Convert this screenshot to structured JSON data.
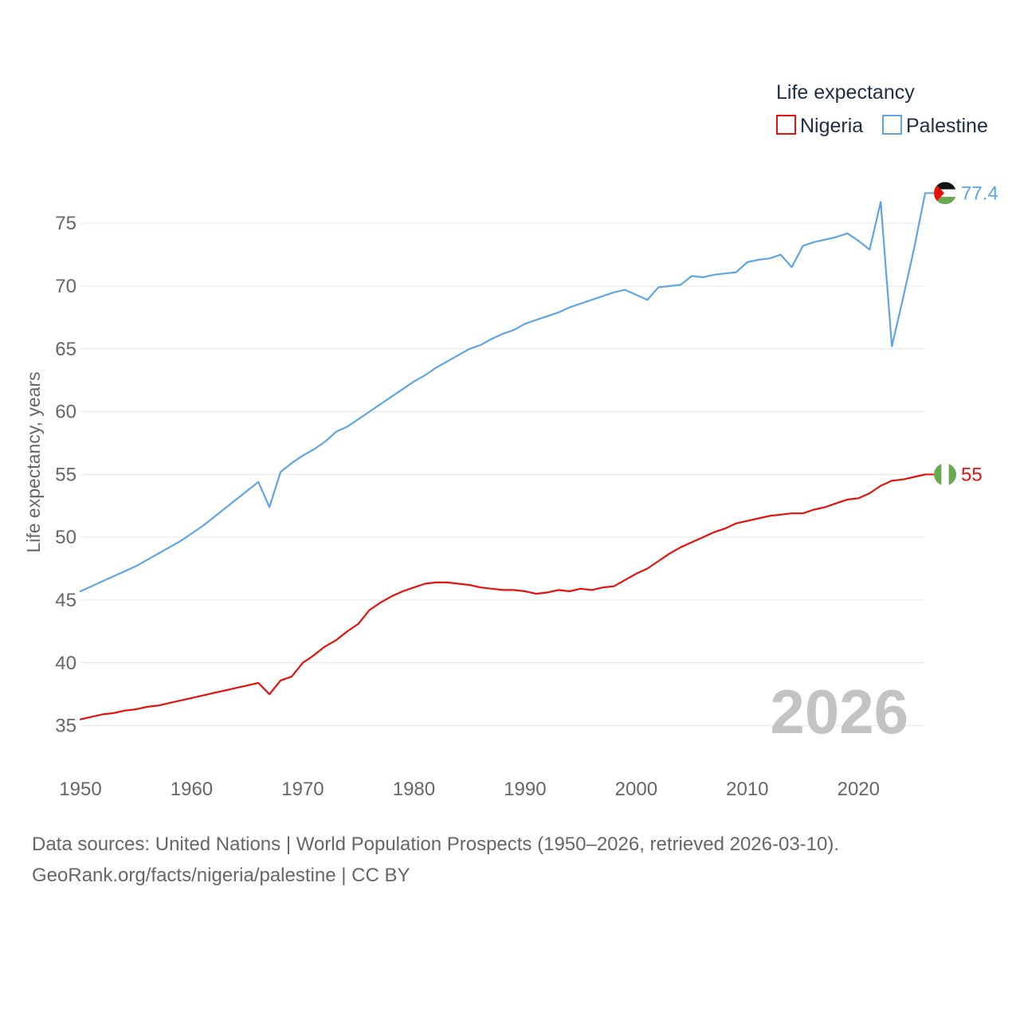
{
  "chart_data": {
    "type": "line",
    "legend_title": "Life expectancy",
    "legend_position": "top-right",
    "ylabel": "Life expectancy, years",
    "xlabel": "",
    "xlim": [
      1950,
      2026
    ],
    "ylim": [
      32.5,
      78.5
    ],
    "x_ticks": [
      1950,
      1960,
      1970,
      1980,
      1990,
      2000,
      2010,
      2020
    ],
    "y_ticks": [
      35,
      40,
      45,
      50,
      55,
      60,
      65,
      70,
      75
    ],
    "grid": true,
    "current_year_label": "2026",
    "x": [
      1950,
      1951,
      1952,
      1953,
      1954,
      1955,
      1956,
      1957,
      1958,
      1959,
      1960,
      1961,
      1962,
      1963,
      1964,
      1965,
      1966,
      1967,
      1968,
      1969,
      1970,
      1971,
      1972,
      1973,
      1974,
      1975,
      1976,
      1977,
      1978,
      1979,
      1980,
      1981,
      1982,
      1983,
      1984,
      1985,
      1986,
      1987,
      1988,
      1989,
      1990,
      1991,
      1992,
      1993,
      1994,
      1995,
      1996,
      1997,
      1998,
      1999,
      2000,
      2001,
      2002,
      2003,
      2004,
      2005,
      2006,
      2007,
      2008,
      2009,
      2010,
      2011,
      2012,
      2013,
      2014,
      2015,
      2016,
      2017,
      2018,
      2019,
      2020,
      2021,
      2022,
      2023,
      2024,
      2025,
      2026
    ],
    "series": [
      {
        "name": "Nigeria",
        "color": "#e3120b",
        "end_label": "55",
        "flag": "nigeria-flag-icon",
        "values": [
          35.5,
          35.7,
          35.9,
          36.0,
          36.2,
          36.3,
          36.5,
          36.6,
          36.8,
          37.0,
          37.2,
          37.4,
          37.6,
          37.8,
          38.0,
          38.2,
          38.4,
          37.5,
          38.6,
          38.9,
          40.0,
          40.6,
          41.3,
          41.8,
          42.5,
          43.1,
          44.2,
          44.8,
          45.3,
          45.7,
          46.0,
          46.3,
          46.4,
          46.4,
          46.3,
          46.2,
          46.0,
          45.9,
          45.8,
          45.8,
          45.7,
          45.5,
          45.6,
          45.8,
          45.7,
          45.9,
          45.8,
          46.0,
          46.1,
          46.6,
          47.1,
          47.5,
          48.1,
          48.7,
          49.2,
          49.6,
          50.0,
          50.4,
          50.7,
          51.1,
          51.3,
          51.5,
          51.7,
          51.8,
          51.9,
          51.9,
          52.2,
          52.4,
          52.7,
          53.0,
          53.1,
          53.5,
          54.1,
          54.5,
          54.6,
          54.8,
          55.0
        ]
      },
      {
        "name": "Palestine",
        "color": "#5fa5e3",
        "end_label": "77.4",
        "flag": "palestine-flag-icon",
        "values": [
          45.7,
          46.1,
          46.5,
          46.9,
          47.3,
          47.7,
          48.2,
          48.7,
          49.2,
          49.7,
          50.3,
          50.9,
          51.6,
          52.3,
          53.0,
          53.7,
          54.4,
          52.4,
          55.2,
          55.9,
          56.5,
          57.0,
          57.6,
          58.4,
          58.8,
          59.4,
          60.0,
          60.6,
          61.2,
          61.8,
          62.4,
          62.9,
          63.5,
          64.0,
          64.5,
          65.0,
          65.3,
          65.8,
          66.2,
          66.5,
          67.0,
          67.3,
          67.6,
          67.9,
          68.3,
          68.6,
          68.9,
          69.2,
          69.5,
          69.7,
          69.3,
          68.9,
          69.9,
          70.0,
          70.1,
          70.8,
          70.7,
          70.9,
          71.0,
          71.1,
          71.9,
          72.1,
          72.2,
          72.5,
          71.5,
          73.2,
          73.5,
          73.7,
          73.9,
          74.2,
          73.6,
          72.9,
          76.7,
          65.2,
          69.0,
          73.0,
          77.4
        ]
      }
    ]
  },
  "footer": {
    "line1": "Data sources: United Nations | World Population Prospects (1950–2026, retrieved 2026-03-10).",
    "line2": "GeoRank.org/facts/nigeria/palestine | CC BY"
  }
}
